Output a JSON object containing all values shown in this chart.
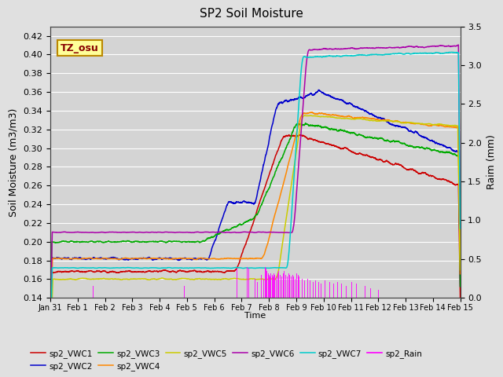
{
  "title": "SP2 Soil Moisture",
  "ylabel_left": "Soil Moisture (m3/m3)",
  "ylabel_right": "Raim (mm)",
  "xlabel": "Time",
  "ylim_left": [
    0.14,
    0.43
  ],
  "ylim_right": [
    0.0,
    3.5
  ],
  "bg_color": "#e0e0e0",
  "axes_bg_color": "#d4d4d4",
  "annotation_text": "TZ_osu",
  "annotation_bg": "#ffff99",
  "annotation_border": "#bb8800",
  "annotation_text_color": "#880000",
  "series_colors": {
    "sp2_VWC1": "#cc0000",
    "sp2_VWC2": "#0000cc",
    "sp2_VWC3": "#00aa00",
    "sp2_VWC4": "#ff8800",
    "sp2_VWC5": "#cccc00",
    "sp2_VWC6": "#aa00aa",
    "sp2_VWC7": "#00cccc",
    "sp2_Rain": "#ff00ff"
  },
  "x_tick_labels": [
    "Jan 31",
    "Feb 1",
    "Feb 2",
    "Feb 3",
    "Feb 4",
    "Feb 5",
    "Feb 6",
    "Feb 7",
    "Feb 8",
    "Feb 9",
    "Feb 10",
    "Feb 11",
    "Feb 12",
    "Feb 13",
    "Feb 14",
    "Feb 15"
  ],
  "yticks_left": [
    0.14,
    0.16,
    0.18,
    0.2,
    0.22,
    0.24,
    0.26,
    0.28,
    0.3,
    0.32,
    0.34,
    0.36,
    0.38,
    0.4,
    0.42
  ],
  "yticks_right": [
    0.0,
    0.5,
    1.0,
    1.5,
    2.0,
    2.5,
    3.0,
    3.5
  ]
}
